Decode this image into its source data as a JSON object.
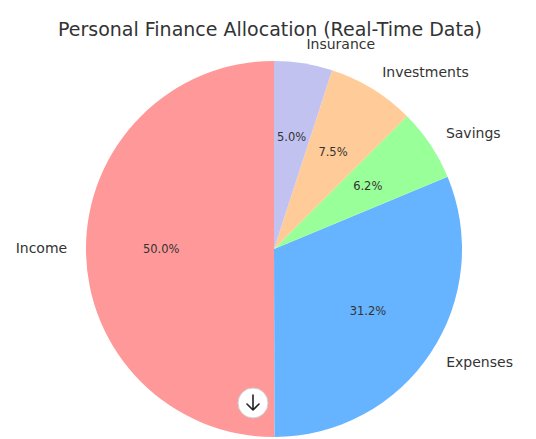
{
  "chart_data": {
    "type": "pie",
    "title": "Personal Finance Allocation (Real-Time Data)",
    "categories": [
      "Income",
      "Expenses",
      "Savings",
      "Investments",
      "Insurance"
    ],
    "values": [
      50.0,
      31.2,
      6.2,
      7.5,
      5.0
    ],
    "value_labels": [
      "50.0%",
      "31.2%",
      "6.2%",
      "7.5%",
      "5.0%"
    ],
    "colors": [
      "#ff9999",
      "#66b3ff",
      "#99ff99",
      "#ffcc99",
      "#c2c2f0"
    ],
    "data_labels": true
  }
}
